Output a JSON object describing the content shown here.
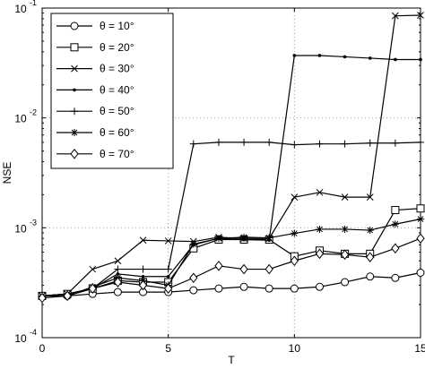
{
  "chart_data": {
    "type": "line",
    "xlabel": "T",
    "ylabel": "NSE",
    "log_y": true,
    "grid": true,
    "legend": "upper left",
    "x": [
      0,
      1,
      2,
      3,
      4,
      5,
      6,
      7,
      8,
      9,
      10,
      11,
      12,
      13,
      14,
      15
    ],
    "xlim": [
      0,
      15
    ],
    "xticks": [
      0,
      5,
      10,
      15
    ],
    "ylim": [
      0.0001,
      0.1
    ],
    "yticks": [
      {
        "value": 0.0001,
        "label": "10",
        "exponent": "-4"
      },
      {
        "value": 0.001,
        "label": "10",
        "exponent": "-3"
      },
      {
        "value": 0.01,
        "label": "10",
        "exponent": "-2"
      },
      {
        "value": 0.1,
        "label": "10",
        "exponent": "-1"
      }
    ],
    "series": [
      {
        "name": "θ = 10°",
        "color": "#000000",
        "marker": "o",
        "values": [
          0.00024,
          0.00024,
          0.00025,
          0.00026,
          0.00026,
          0.00026,
          0.00027,
          0.00028,
          0.00029,
          0.00028,
          0.00028,
          0.00029,
          0.00032,
          0.00036,
          0.00035,
          0.00039
        ]
      },
      {
        "name": "θ = 20°",
        "color": "#000000",
        "marker": "s",
        "values": [
          0.00024,
          0.00025,
          0.00028,
          0.00033,
          0.00032,
          0.00032,
          0.00065,
          0.00078,
          0.00078,
          0.00078,
          0.00055,
          0.00062,
          0.00058,
          0.00058,
          0.00145,
          0.0015
        ]
      },
      {
        "name": "θ = 30°",
        "color": "#000000",
        "marker": "x",
        "values": [
          0.00024,
          0.00025,
          0.00042,
          0.0005,
          0.00077,
          0.00076,
          0.00075,
          0.00082,
          0.0008,
          0.0008,
          0.0019,
          0.0021,
          0.0019,
          0.0019,
          0.085,
          0.086
        ]
      },
      {
        "name": "θ = 40°",
        "color": "#000000",
        "marker": ".",
        "values": [
          0.00024,
          0.00025,
          0.00028,
          0.00038,
          0.00036,
          0.00036,
          0.0007,
          0.0008,
          0.00078,
          0.00077,
          0.037,
          0.037,
          0.036,
          0.035,
          0.034,
          0.034
        ]
      },
      {
        "name": "θ = 50°",
        "color": "#000000",
        "marker": "+",
        "values": [
          0.00024,
          0.00025,
          0.00028,
          0.00042,
          0.00042,
          0.00042,
          0.0058,
          0.006,
          0.006,
          0.006,
          0.0057,
          0.0058,
          0.0058,
          0.0059,
          0.0059,
          0.006
        ]
      },
      {
        "name": "θ = 60°",
        "color": "#000000",
        "marker": "*",
        "values": [
          0.00024,
          0.00024,
          0.00029,
          0.00035,
          0.00033,
          0.0003,
          0.00071,
          0.0008,
          0.00082,
          0.00081,
          0.00089,
          0.00097,
          0.00097,
          0.00095,
          0.00108,
          0.0012
        ]
      },
      {
        "name": "θ = 70°",
        "color": "#000000",
        "marker": "d",
        "values": [
          0.00023,
          0.00024,
          0.00028,
          0.00032,
          0.0003,
          0.00028,
          0.00035,
          0.00045,
          0.00042,
          0.00042,
          0.0005,
          0.00058,
          0.00057,
          0.00054,
          0.00065,
          0.0008
        ]
      }
    ]
  }
}
